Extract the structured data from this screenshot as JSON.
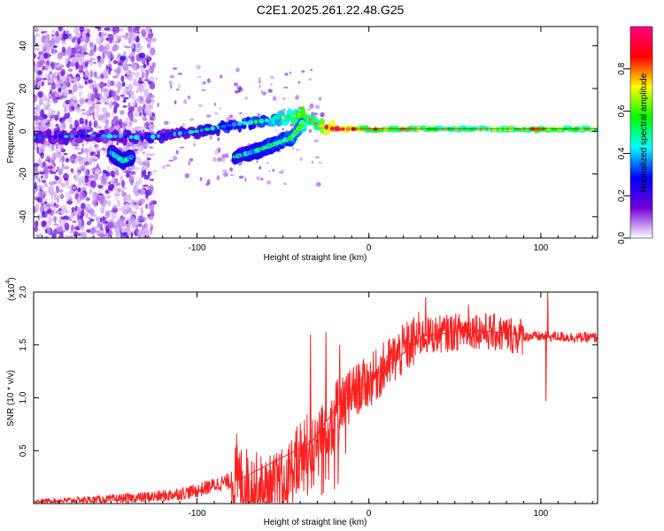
{
  "title": "C2E1.2025.261.22.48.G25",
  "chart_data": [
    {
      "type": "heatmap",
      "xlabel": "Height of straight line (km)",
      "ylabel": "Frequency (Hz)",
      "xlim": [
        -195,
        133
      ],
      "ylim": [
        -50,
        49
      ],
      "xticks": [
        -100,
        0,
        100
      ],
      "yticks": [
        -40,
        -20,
        0,
        20,
        40
      ],
      "xtick_labels": [
        "-100",
        "0",
        "100"
      ],
      "ytick_labels": [
        "-40",
        "-20",
        "0",
        "20",
        "40"
      ],
      "colorbar": {
        "label": "Normalized spectral amplitude",
        "range": [
          0,
          1
        ],
        "ticks": [
          0,
          0.2,
          0.4,
          0.6,
          0.8
        ],
        "tick_labels": [
          "0.0",
          "0.2",
          "0.4",
          "0.6",
          "0.8"
        ],
        "colormap": [
          "#ffffff",
          "#7000d8",
          "#0000ff",
          "#00ffff",
          "#00ff00",
          "#ffff00",
          "#ff0000",
          "#ff0080"
        ]
      },
      "tracks": [
        {
          "name": "main track",
          "x": [
            -195,
            -160,
            -130,
            -100,
            -80,
            -60,
            -45,
            -38,
            -30,
            -20,
            0,
            50,
            100,
            133
          ],
          "y": [
            -3,
            -2,
            -3,
            0,
            3,
            5,
            7,
            8,
            3,
            1,
            1,
            1,
            1,
            1
          ],
          "amplitude": [
            0.2,
            0.2,
            0.22,
            0.28,
            0.33,
            0.38,
            0.5,
            0.6,
            0.55,
            0.85,
            0.6,
            0.5,
            0.6,
            0.5
          ]
        },
        {
          "name": "lower branch",
          "x": [
            -78,
            -65,
            -55,
            -45,
            -38
          ],
          "y": [
            -12,
            -9,
            -6,
            -3,
            4
          ],
          "amplitude": [
            0.3,
            0.32,
            0.35,
            0.38,
            0.45
          ]
        },
        {
          "name": "lower dip",
          "x": [
            -150,
            -143,
            -138
          ],
          "y": [
            -10,
            -14,
            -12
          ],
          "amplitude": [
            0.28,
            0.32,
            0.28
          ]
        }
      ]
    },
    {
      "type": "line",
      "xlabel": "Height of straight line (km)",
      "ylabel": "SNR (10 * v/v)",
      "yscale_label": "(x10",
      "yscale_exponent": "4",
      "yscale_close": ")",
      "xlim": [
        -195,
        133
      ],
      "ylim": [
        0,
        2.0
      ],
      "xticks": [
        -100,
        0,
        100
      ],
      "yticks": [
        0.5,
        1.0,
        1.5,
        2.0
      ],
      "xtick_labels": [
        "-100",
        "0",
        "100"
      ],
      "ytick_labels": [
        "0.5",
        "1.0",
        "1.5",
        "2.0"
      ],
      "color": "#ff2020",
      "series": [
        {
          "name": "SNR trend",
          "x": [
            -195,
            -150,
            -120,
            -100,
            -85,
            -75,
            -60,
            -50,
            -40,
            -30,
            -20,
            -10,
            0,
            10,
            20,
            30,
            40,
            50,
            60,
            70,
            80,
            90,
            100,
            110,
            120,
            133
          ],
          "y": [
            0.02,
            0.04,
            0.07,
            0.12,
            0.2,
            0.22,
            0.1,
            0.18,
            0.45,
            0.65,
            0.9,
            1.05,
            1.15,
            1.3,
            1.45,
            1.58,
            1.6,
            1.62,
            1.65,
            1.62,
            1.6,
            1.58,
            1.58,
            1.58,
            1.57,
            1.57
          ]
        },
        {
          "name": "spikes",
          "x": [
            -77,
            -34,
            -25,
            -17,
            33,
            58,
            103,
            104
          ],
          "y": [
            0.66,
            1.6,
            1.62,
            1.5,
            1.95,
            1.88,
            0.97,
            2.0
          ]
        }
      ]
    }
  ]
}
